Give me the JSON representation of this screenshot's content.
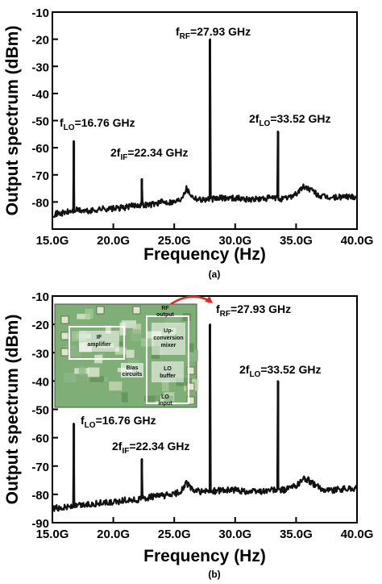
{
  "chart_data": [
    {
      "panel": "(a)",
      "type": "line",
      "xlabel": "Frequency (Hz)",
      "ylabel": "Output spectrum (dBm)",
      "xlim": [
        15.0,
        40.0
      ],
      "ylim": [
        -90,
        -10
      ],
      "x_unit": "GHz",
      "xticks": [
        15,
        20,
        25,
        30,
        35,
        40
      ],
      "xtick_labels": [
        "15.0G",
        "20.0G",
        "25.0G",
        "30.0G",
        "35.0G",
        "40.0G"
      ],
      "yticks": [
        -80,
        -70,
        -60,
        -50,
        -40,
        -30,
        -20,
        -10
      ],
      "ytick_labels": [
        "-80",
        "-70",
        "-60",
        "-50",
        "-40",
        "-30",
        "-20",
        "-10"
      ],
      "grid": false,
      "noise_floor": [
        [
          15.0,
          -84.5
        ],
        [
          16.0,
          -84
        ],
        [
          17.0,
          -83
        ],
        [
          18.0,
          -83.5
        ],
        [
          19.0,
          -82.5
        ],
        [
          20.0,
          -82.5
        ],
        [
          21.0,
          -82
        ],
        [
          22.0,
          -81
        ],
        [
          23.0,
          -81
        ],
        [
          24.0,
          -80
        ],
        [
          25.0,
          -80
        ],
        [
          25.5,
          -79
        ],
        [
          26.0,
          -75
        ],
        [
          26.5,
          -78
        ],
        [
          27.0,
          -79
        ],
        [
          28.0,
          -79
        ],
        [
          29.0,
          -78.5
        ],
        [
          30.0,
          -78.5
        ],
        [
          31.0,
          -79
        ],
        [
          32.0,
          -79
        ],
        [
          33.0,
          -78.5
        ],
        [
          34.0,
          -79
        ],
        [
          35.0,
          -77
        ],
        [
          35.6,
          -74.5
        ],
        [
          36.0,
          -75
        ],
        [
          37.0,
          -78
        ],
        [
          38.0,
          -78.5
        ],
        [
          39.0,
          -78
        ],
        [
          40.0,
          -78
        ]
      ],
      "peaks": [
        {
          "x": 16.76,
          "y": -57.5,
          "label_main": "f",
          "label_sub": "LO",
          "label_rest": "=16.76 GHz"
        },
        {
          "x": 22.34,
          "y": -71.5,
          "label_main": "2f",
          "label_sub": "IF",
          "label_rest": "=22.34 GHz"
        },
        {
          "x": 27.93,
          "y": -20,
          "label_main": "f",
          "label_sub": "RF",
          "label_rest": "=27.93 GHz"
        },
        {
          "x": 33.52,
          "y": -54,
          "label_main": "2f",
          "label_sub": "LO",
          "label_rest": "=33.52 GHz"
        }
      ]
    },
    {
      "panel": "(b)",
      "type": "line",
      "xlabel": "Frequency (Hz)",
      "ylabel": "Output spectrum (dBm)",
      "xlim": [
        15.0,
        40.0
      ],
      "ylim": [
        -90,
        -10
      ],
      "x_unit": "GHz",
      "xticks": [
        15,
        20,
        25,
        30,
        35,
        40
      ],
      "xtick_labels": [
        "15.0G",
        "20.0G",
        "25.0G",
        "30.0G",
        "35.0G",
        "40.0G"
      ],
      "yticks": [
        -90,
        -80,
        -70,
        -60,
        -50,
        -40,
        -30,
        -20,
        -10
      ],
      "ytick_labels": [
        "-90",
        "-80",
        "-70",
        "-60",
        "-50",
        "-40",
        "-30",
        "-20",
        "-10"
      ],
      "grid": false,
      "noise_floor": [
        [
          15.0,
          -85
        ],
        [
          16.0,
          -84.5
        ],
        [
          17.0,
          -84
        ],
        [
          18.0,
          -83.5
        ],
        [
          19.0,
          -83
        ],
        [
          20.0,
          -83
        ],
        [
          21.0,
          -82
        ],
        [
          22.0,
          -82
        ],
        [
          23.0,
          -81
        ],
        [
          24.0,
          -80.5
        ],
        [
          25.0,
          -80
        ],
        [
          25.5,
          -79
        ],
        [
          26.0,
          -76
        ],
        [
          26.5,
          -78.5
        ],
        [
          27.0,
          -79
        ],
        [
          28.0,
          -79
        ],
        [
          29.0,
          -78.5
        ],
        [
          30.0,
          -78.5
        ],
        [
          31.0,
          -79
        ],
        [
          32.0,
          -79
        ],
        [
          33.0,
          -78.5
        ],
        [
          34.0,
          -78.5
        ],
        [
          35.0,
          -77
        ],
        [
          35.6,
          -74.5
        ],
        [
          36.0,
          -75
        ],
        [
          37.0,
          -78
        ],
        [
          38.0,
          -78.5
        ],
        [
          39.0,
          -78
        ],
        [
          40.0,
          -78
        ]
      ],
      "peaks": [
        {
          "x": 16.76,
          "y": -55,
          "label_main": "f",
          "label_sub": "LO",
          "label_rest": "=16.76 GHz"
        },
        {
          "x": 22.34,
          "y": -67.5,
          "label_main": "2f",
          "label_sub": "IF",
          "label_rest": "=22.34 GHz"
        },
        {
          "x": 27.93,
          "y": -20,
          "label_main": "f",
          "label_sub": "RF",
          "label_rest": "=27.93 GHz"
        },
        {
          "x": 33.52,
          "y": -40,
          "label_main": "2f",
          "label_sub": "LO",
          "label_rest": "=33.52 GHz"
        }
      ],
      "inset_labels": [
        {
          "text": "IF",
          "sub": "",
          "tail": "amplifier"
        },
        {
          "text": "Up-",
          "sub": "",
          "tail": "conversion mixer"
        },
        {
          "text": "LO",
          "sub": "",
          "tail": "buffer"
        },
        {
          "text": "Bias",
          "sub": "",
          "tail": "circuits"
        },
        {
          "text": "RF",
          "sub": "",
          "tail": "output"
        },
        {
          "text": "LO",
          "sub": "",
          "tail": "input"
        }
      ]
    }
  ],
  "colors": {
    "trace": "#111111",
    "annotation_arrow": "#e0281e",
    "inset_bg": "#7fae76"
  }
}
